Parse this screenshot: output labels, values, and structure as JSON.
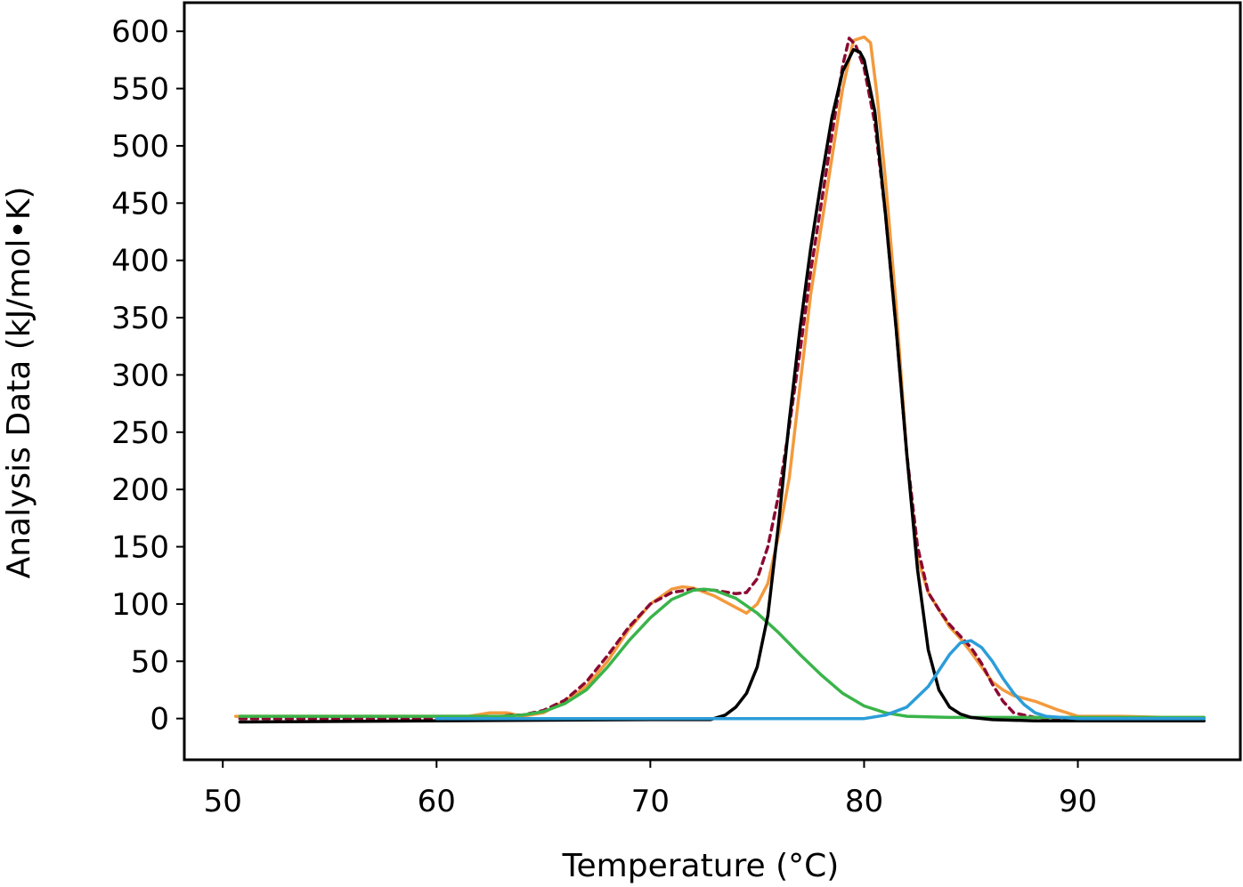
{
  "chart_data": {
    "type": "line",
    "title": "",
    "xlabel": "Temperature (°C)",
    "ylabel": "Analysis Data (kJ/mol•K)",
    "xlim": [
      48.2,
      97.6
    ],
    "ylim": [
      -36,
      625
    ],
    "xticks": [
      50,
      60,
      70,
      80,
      90
    ],
    "yticks": [
      0,
      50,
      100,
      150,
      200,
      250,
      300,
      350,
      400,
      450,
      500,
      550,
      600
    ],
    "grid": false,
    "legend": "none",
    "series": [
      {
        "color": "#f39a3d",
        "style": "solid",
        "points": [
          [
            50.6,
            2
          ],
          [
            55,
            2
          ],
          [
            60,
            2
          ],
          [
            61.5,
            2
          ],
          [
            62.5,
            5
          ],
          [
            63.3,
            5
          ],
          [
            64,
            2
          ],
          [
            65,
            5
          ],
          [
            66,
            15
          ],
          [
            67,
            28
          ],
          [
            68,
            50
          ],
          [
            69,
            78
          ],
          [
            70,
            100
          ],
          [
            71,
            113
          ],
          [
            71.5,
            115
          ],
          [
            72,
            114
          ],
          [
            73,
            107
          ],
          [
            74,
            97
          ],
          [
            74.5,
            92
          ],
          [
            75,
            100
          ],
          [
            75.5,
            118
          ],
          [
            76,
            160
          ],
          [
            76.5,
            210
          ],
          [
            77,
            290
          ],
          [
            77.5,
            370
          ],
          [
            78,
            430
          ],
          [
            78.5,
            490
          ],
          [
            79,
            550
          ],
          [
            79.5,
            592
          ],
          [
            80,
            595
          ],
          [
            80.3,
            590
          ],
          [
            80.6,
            545
          ],
          [
            81,
            470
          ],
          [
            81.5,
            360
          ],
          [
            82,
            230
          ],
          [
            82.5,
            140
          ],
          [
            83,
            110
          ],
          [
            83.5,
            95
          ],
          [
            84,
            80
          ],
          [
            84.5,
            70
          ],
          [
            85,
            58
          ],
          [
            85.5,
            45
          ],
          [
            86,
            32
          ],
          [
            86.5,
            25
          ],
          [
            87,
            20
          ],
          [
            88,
            15
          ],
          [
            89,
            8
          ],
          [
            90,
            2
          ],
          [
            92,
            2
          ],
          [
            94,
            1
          ],
          [
            95.9,
            1
          ]
        ]
      },
      {
        "color": "#8b0a32",
        "style": "dotted",
        "points": [
          [
            50.8,
            0
          ],
          [
            60,
            0
          ],
          [
            62,
            1
          ],
          [
            63,
            2
          ],
          [
            63.5,
            3
          ],
          [
            64,
            3
          ],
          [
            65,
            7
          ],
          [
            66,
            16
          ],
          [
            67,
            32
          ],
          [
            68,
            55
          ],
          [
            69,
            80
          ],
          [
            70,
            100
          ],
          [
            71,
            110
          ],
          [
            72,
            113
          ],
          [
            73,
            112
          ],
          [
            74,
            109
          ],
          [
            74.5,
            110
          ],
          [
            75,
            122
          ],
          [
            75.5,
            150
          ],
          [
            76,
            195
          ],
          [
            76.5,
            255
          ],
          [
            77,
            320
          ],
          [
            77.5,
            390
          ],
          [
            78,
            450
          ],
          [
            78.5,
            510
          ],
          [
            79,
            570
          ],
          [
            79.3,
            594
          ],
          [
            79.6,
            588
          ],
          [
            80,
            568
          ],
          [
            80.5,
            520
          ],
          [
            81,
            440
          ],
          [
            81.5,
            340
          ],
          [
            82,
            230
          ],
          [
            82.5,
            150
          ],
          [
            83,
            110
          ],
          [
            83.5,
            95
          ],
          [
            84,
            82
          ],
          [
            84.5,
            72
          ],
          [
            85,
            62
          ],
          [
            85.5,
            48
          ],
          [
            86,
            30
          ],
          [
            86.5,
            15
          ],
          [
            87,
            5
          ],
          [
            88,
            1
          ],
          [
            90,
            0
          ],
          [
            92,
            0
          ]
        ]
      },
      {
        "color": "#3ab44a",
        "style": "solid",
        "points": [
          [
            50.8,
            2
          ],
          [
            55,
            2
          ],
          [
            60,
            2
          ],
          [
            62,
            2
          ],
          [
            63,
            2
          ],
          [
            64,
            3
          ],
          [
            65,
            6
          ],
          [
            66,
            13
          ],
          [
            67,
            25
          ],
          [
            68,
            45
          ],
          [
            69,
            68
          ],
          [
            70,
            88
          ],
          [
            71,
            104
          ],
          [
            72,
            112
          ],
          [
            72.5,
            113
          ],
          [
            73,
            112
          ],
          [
            74,
            105
          ],
          [
            75,
            92
          ],
          [
            76,
            75
          ],
          [
            77,
            56
          ],
          [
            78,
            38
          ],
          [
            79,
            22
          ],
          [
            80,
            11
          ],
          [
            81,
            5
          ],
          [
            82,
            2
          ],
          [
            84,
            1
          ],
          [
            88,
            1
          ],
          [
            92,
            1
          ],
          [
            95.9,
            1
          ]
        ]
      },
      {
        "color": "#000000",
        "style": "solid",
        "points": [
          [
            50.8,
            -3
          ],
          [
            60,
            -2
          ],
          [
            70,
            -1
          ],
          [
            72.8,
            -1
          ],
          [
            73.5,
            3
          ],
          [
            74,
            10
          ],
          [
            74.5,
            22
          ],
          [
            75,
            45
          ],
          [
            75.5,
            90
          ],
          [
            76,
            170
          ],
          [
            76.5,
            260
          ],
          [
            77,
            340
          ],
          [
            77.5,
            410
          ],
          [
            78,
            470
          ],
          [
            78.5,
            525
          ],
          [
            79,
            565
          ],
          [
            79.5,
            584
          ],
          [
            79.8,
            582
          ],
          [
            80,
            575
          ],
          [
            80.5,
            530
          ],
          [
            81,
            440
          ],
          [
            81.5,
            340
          ],
          [
            82,
            230
          ],
          [
            82.5,
            130
          ],
          [
            83,
            60
          ],
          [
            83.5,
            25
          ],
          [
            84,
            10
          ],
          [
            84.5,
            4
          ],
          [
            85,
            1
          ],
          [
            86,
            -1
          ],
          [
            88,
            -2
          ],
          [
            90,
            -2
          ],
          [
            95.9,
            -2
          ]
        ]
      },
      {
        "color": "#2b9dd9",
        "style": "solid",
        "points": [
          [
            60,
            0
          ],
          [
            70,
            0
          ],
          [
            78,
            0
          ],
          [
            80,
            0
          ],
          [
            81,
            3
          ],
          [
            82,
            10
          ],
          [
            83,
            28
          ],
          [
            83.5,
            42
          ],
          [
            84,
            56
          ],
          [
            84.5,
            66
          ],
          [
            85,
            68
          ],
          [
            85.5,
            62
          ],
          [
            86,
            50
          ],
          [
            86.5,
            35
          ],
          [
            87,
            22
          ],
          [
            87.5,
            12
          ],
          [
            88,
            5
          ],
          [
            88.5,
            2
          ],
          [
            90,
            0
          ],
          [
            95.9,
            0
          ]
        ]
      }
    ]
  }
}
